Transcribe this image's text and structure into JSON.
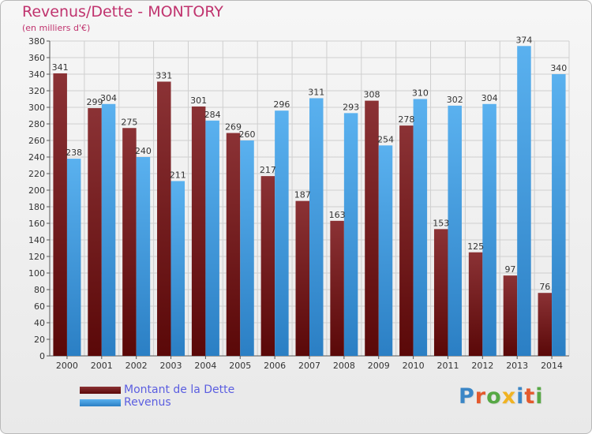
{
  "title": "Revenus/Dette - MONTORY",
  "subtitle": "(en milliers d'€)",
  "logo": {
    "letters": [
      {
        "char": "P",
        "color": "#3b86c6"
      },
      {
        "char": "r",
        "color": "#e4592d"
      },
      {
        "char": "o",
        "color": "#57a845"
      },
      {
        "char": "x",
        "color": "#f0b323"
      },
      {
        "char": "i",
        "color": "#3b86c6"
      },
      {
        "char": "t",
        "color": "#e4592d"
      },
      {
        "char": "i",
        "color": "#57a845"
      }
    ]
  },
  "legend": [
    {
      "label": "Montant de la Dette",
      "color": "#8b1f25"
    },
    {
      "label": "Revenus",
      "color": "#3d9de2"
    }
  ],
  "colors": {
    "title": "#c0336e",
    "debt_top": "#8b3235",
    "debt_bottom": "#5a0808",
    "revenue_top": "#5ab1ef",
    "revenue_bottom": "#2b7fc4",
    "grid": "#cfcfcf",
    "axis": "#555555"
  },
  "chart_data": {
    "type": "bar",
    "categories": [
      "2000",
      "2001",
      "2002",
      "2003",
      "2004",
      "2005",
      "2006",
      "2007",
      "2008",
      "2009",
      "2010",
      "2011",
      "2012",
      "2013",
      "2014"
    ],
    "series": [
      {
        "name": "Montant de la Dette",
        "values": [
          341,
          299,
          275,
          331,
          301,
          269,
          217,
          187,
          163,
          308,
          278,
          153,
          125,
          97,
          76
        ]
      },
      {
        "name": "Revenus",
        "values": [
          238,
          304,
          240,
          211,
          284,
          260,
          296,
          311,
          293,
          254,
          310,
          302,
          304,
          374,
          340
        ]
      }
    ],
    "ylim": [
      0,
      380
    ],
    "ytick_step": 20,
    "yticks": [
      "0",
      "20",
      "40",
      "60",
      "80",
      "100",
      "120",
      "140",
      "160",
      "180",
      "200",
      "220",
      "240",
      "260",
      "280",
      "300",
      "320",
      "340",
      "360",
      "380"
    ],
    "grid": true,
    "legend_position": "bottom-left"
  }
}
